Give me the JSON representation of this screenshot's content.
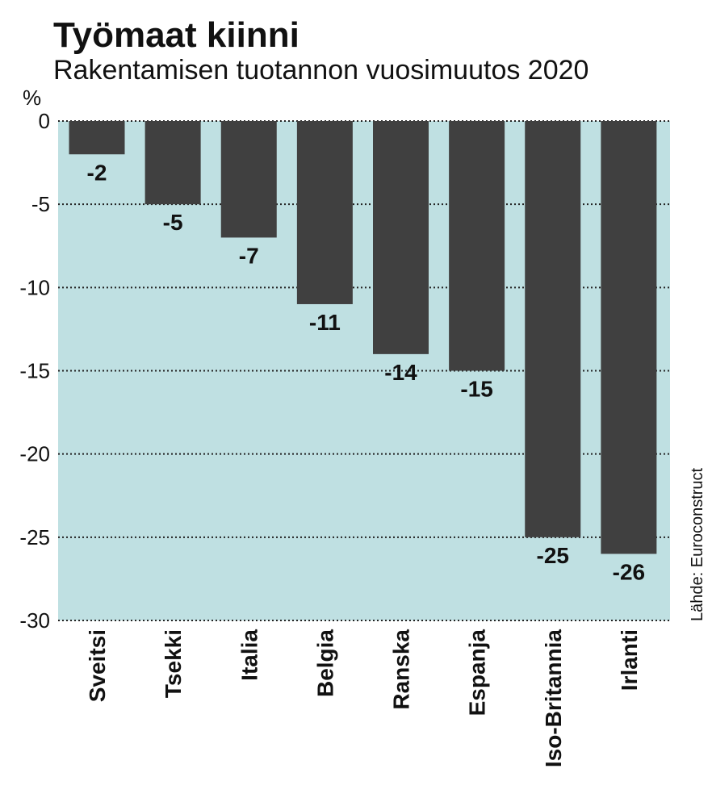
{
  "chart_data": {
    "type": "bar",
    "title": "Työmaat kiinni",
    "subtitle": "Rakentamisen tuotannon vuosimuutos 2020",
    "ylabel": "%",
    "categories": [
      "Sveitsi",
      "Tsekki",
      "Italia",
      "Belgia",
      "Ranska",
      "Espanja",
      "Iso-Britannia",
      "Irlanti"
    ],
    "values": [
      -2,
      -5,
      -7,
      -11,
      -14,
      -15,
      -25,
      -26
    ],
    "value_labels": [
      "-2",
      "-5",
      "-7",
      "-11",
      "-14",
      "-15",
      "-25",
      "-26"
    ],
    "yticks": [
      0,
      -5,
      -10,
      -15,
      -20,
      -25,
      -30
    ],
    "ytick_labels": [
      "0",
      "-5",
      "-10",
      "-15",
      "-20",
      "-25",
      "-30"
    ],
    "ylim": [
      -30,
      0
    ],
    "grid": true,
    "source": "Lähde: Euroconstruct",
    "colors": {
      "bar": "#404040",
      "plot_bg": "#bfe0e2",
      "grid": "#222222",
      "text": "#111111"
    }
  }
}
